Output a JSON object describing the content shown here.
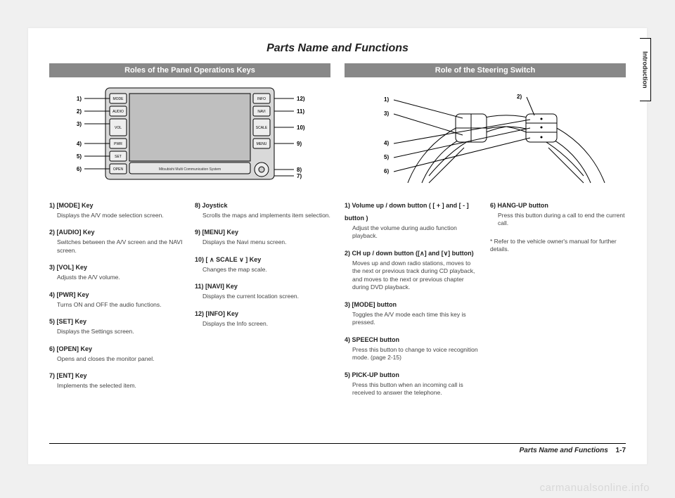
{
  "sideTab": "Introduction",
  "title": "Parts Name and Functions",
  "left": {
    "heading": "Roles of the Panel Operations Keys",
    "diagram": {
      "type": "diagram",
      "background": "#ffffff",
      "stroke": "#000000",
      "fill_gray": "#d9d9d9",
      "screen_fill": "#bfbfbf",
      "line_width": 1,
      "font_size": 8,
      "left_buttons": [
        "MODE",
        "AUDIO",
        "VOL",
        "PWR",
        "SET",
        "OPEN"
      ],
      "right_buttons": [
        "INFO",
        "NAVI",
        "SCALE",
        "MENU"
      ],
      "center_caption": "Mitsubishi Multi Communication System",
      "left_labels": [
        "1)",
        "2)",
        "3)",
        "4)",
        "5)",
        "6)"
      ],
      "right_labels": [
        "12)",
        "11)",
        "10)",
        "9)",
        "8)",
        "7)"
      ]
    },
    "itemsA": [
      {
        "n": "1)",
        "name": "[MODE] Key",
        "d": "Displays the A/V mode selection screen."
      },
      {
        "n": "2)",
        "name": "[AUDIO] Key",
        "d": "Switches between the A/V screen and the NAVI screen."
      },
      {
        "n": "3)",
        "name": "[VOL] Key",
        "d": "Adjusts the A/V volume."
      },
      {
        "n": "4)",
        "name": "[PWR] Key",
        "d": "Turns ON and OFF the audio functions."
      },
      {
        "n": "5)",
        "name": "[SET] Key",
        "d": "Displays the Settings screen."
      },
      {
        "n": "6)",
        "name": "[OPEN] Key",
        "d": "Opens and closes the monitor panel."
      },
      {
        "n": "7)",
        "name": "[ENT] Key",
        "d": "Implements the selected item."
      }
    ],
    "itemsB": [
      {
        "n": "8)",
        "name": "Joystick",
        "d": "Scrolls the maps and implements item selection."
      },
      {
        "n": "9)",
        "name": "[MENU] Key",
        "d": "Displays the Navi menu screen."
      },
      {
        "n": "10)",
        "name": "[ ∧ SCALE ∨ ] Key",
        "d": "Changes the map scale."
      },
      {
        "n": "11)",
        "name": "[NAVI] Key",
        "d": "Displays the current location screen."
      },
      {
        "n": "12)",
        "name": "[INFO] Key",
        "d": "Displays the Info screen."
      }
    ]
  },
  "right": {
    "heading": "Role of the Steering Switch",
    "diagram": {
      "type": "diagram",
      "background": "#ffffff",
      "stroke": "#000000",
      "line_width": 1,
      "font_size": 8,
      "labels": [
        "1)",
        "2)",
        "3)",
        "4)",
        "5)",
        "6)"
      ]
    },
    "itemsA": [
      {
        "n": "1)",
        "name": "Volume up / down button ( [ + ] and [ - ] button )",
        "d": "Adjust the volume during audio function playback."
      },
      {
        "n": "2)",
        "name": "CH up / down button ([∧] and [∨] button)",
        "d": "Moves up and down radio stations, moves to the next or previous track during CD playback, and moves to the next or previous chapter during DVD playback."
      },
      {
        "n": "3)",
        "name": "[MODE] button",
        "d": "Toggles the A/V mode each time this key is pressed."
      },
      {
        "n": "4)",
        "name": "SPEECH button",
        "d": "Press this button to change to voice recognition mode. (page 2-15)"
      },
      {
        "n": "5)",
        "name": "PICK-UP button",
        "d": "Press this button when an incoming call is received to answer the telephone."
      }
    ],
    "itemsB": [
      {
        "n": "6)",
        "name": "HANG-UP button",
        "d": "Press this button during a call to end the current call."
      }
    ],
    "note": "* Refer to the vehicle owner's manual for further details."
  },
  "footer": {
    "text": "Parts Name and Functions",
    "page": "1-7"
  },
  "watermark": "carmanualsonline.info"
}
